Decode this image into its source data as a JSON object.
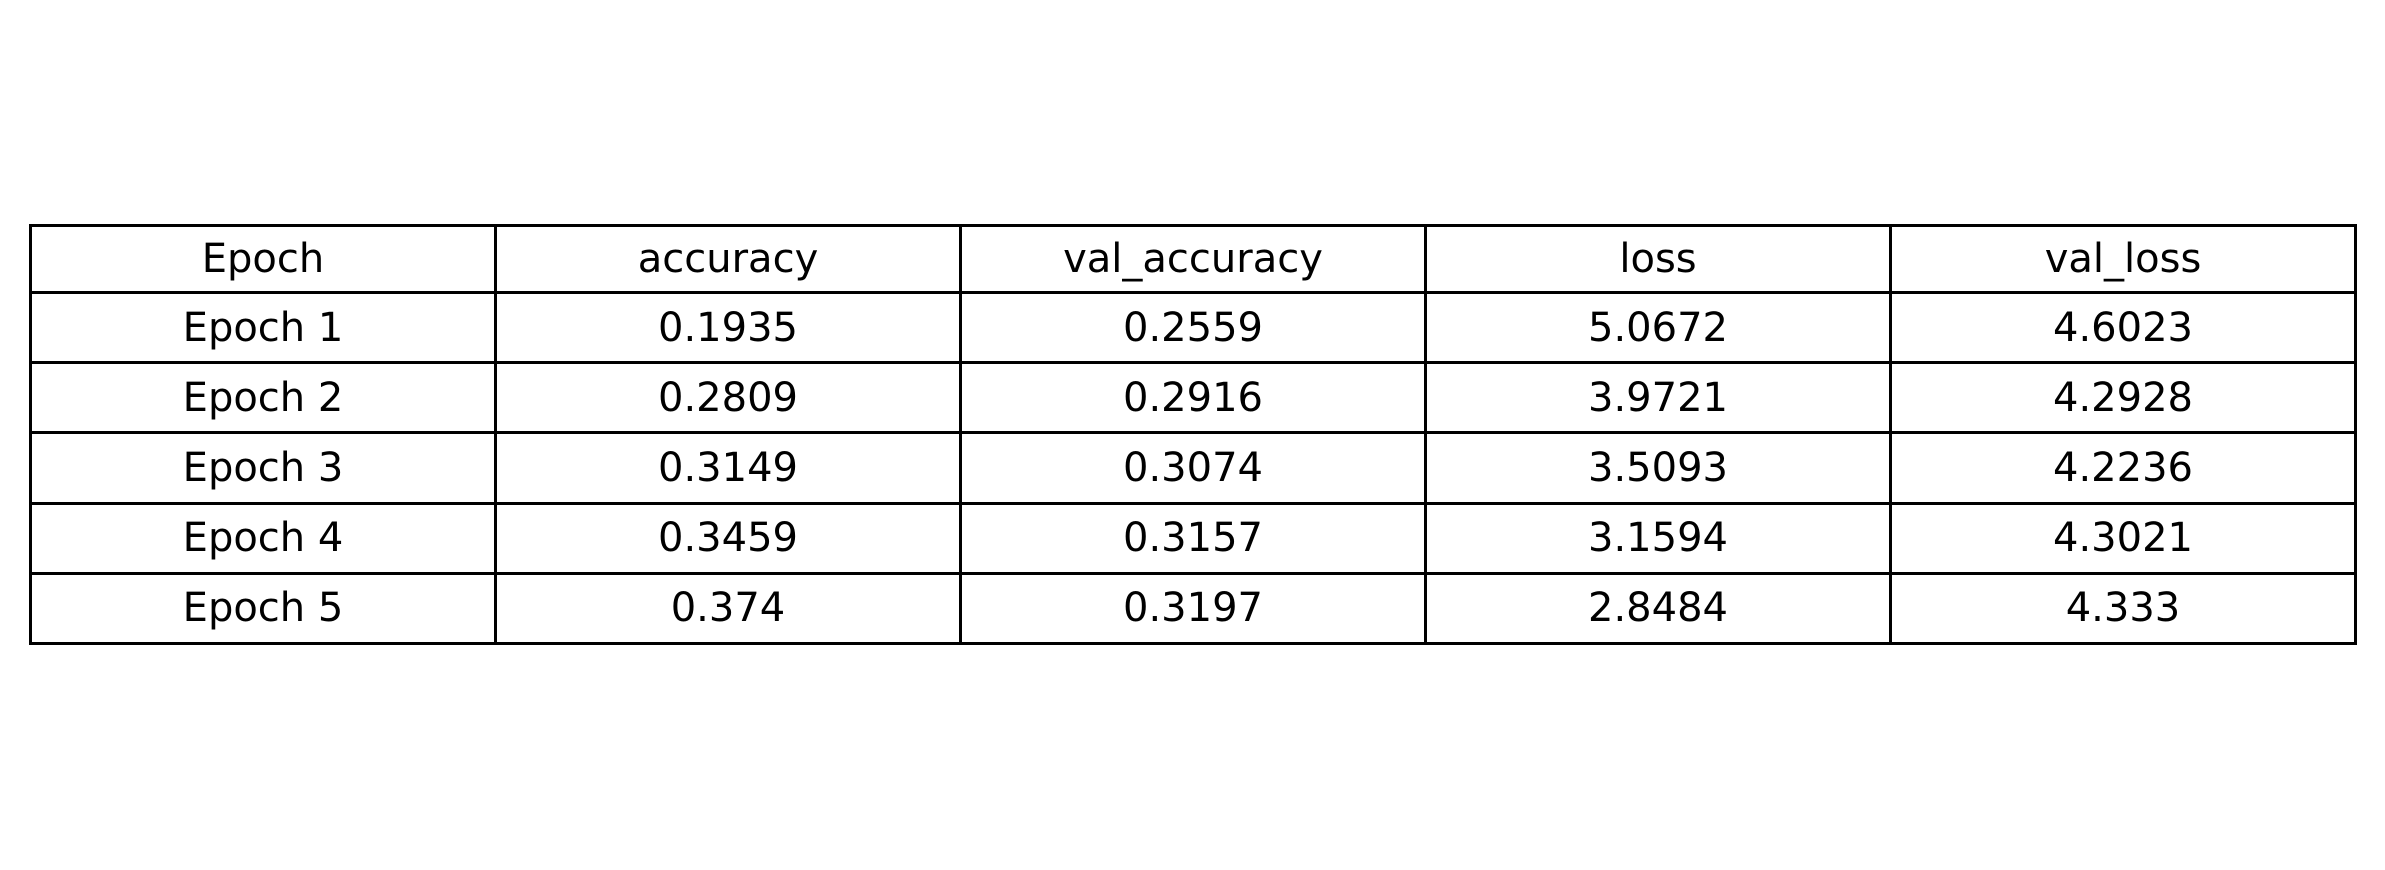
{
  "chart_data": {
    "type": "table",
    "columns": [
      "Epoch",
      "accuracy",
      "val_accuracy",
      "loss",
      "val_loss"
    ],
    "rows": [
      [
        "Epoch 1",
        "0.1935",
        "0.2559",
        "5.0672",
        "4.6023"
      ],
      [
        "Epoch 2",
        "0.2809",
        "0.2916",
        "3.9721",
        "4.2928"
      ],
      [
        "Epoch 3",
        "0.3149",
        "0.3074",
        "3.5093",
        "4.2236"
      ],
      [
        "Epoch 4",
        "0.3459",
        "0.3157",
        "3.1594",
        "4.3021"
      ],
      [
        "Epoch 5",
        "0.374",
        "0.3197",
        "2.8484",
        "4.333"
      ]
    ]
  },
  "colors": {
    "border": "#000000",
    "text": "#000000",
    "background": "#ffffff"
  }
}
